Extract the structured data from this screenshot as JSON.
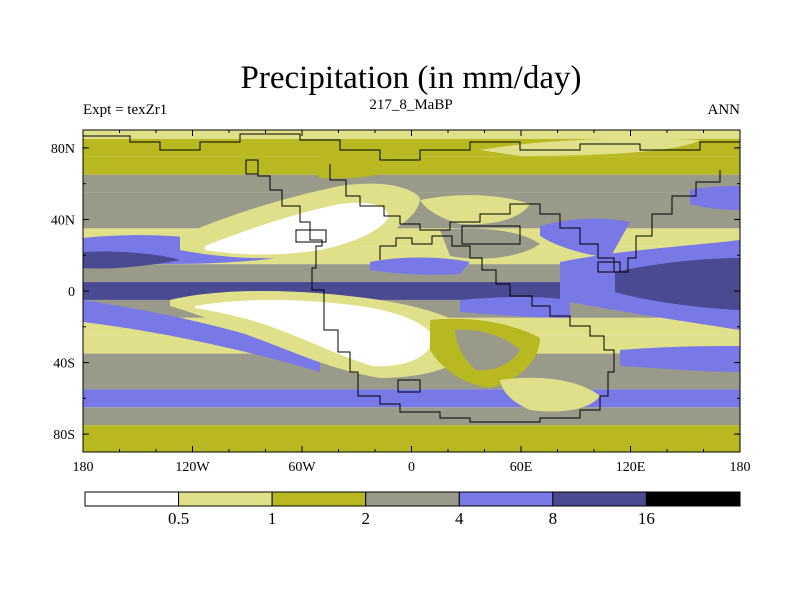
{
  "chart_data": {
    "type": "heatmap",
    "title": "Precipitation (in mm/day)",
    "subtitle_left": "Expt = texZr1",
    "subtitle_center": "217_8_MaBP",
    "subtitle_right": "ANN",
    "xlabel": "",
    "ylabel": "",
    "xlim": [
      -180,
      180
    ],
    "ylim": [
      -90,
      90
    ],
    "x_ticks": [
      {
        "value": -180,
        "label": "180"
      },
      {
        "value": -120,
        "label": "120W"
      },
      {
        "value": -60,
        "label": "60W"
      },
      {
        "value": 0,
        "label": "0"
      },
      {
        "value": 60,
        "label": "60E"
      },
      {
        "value": 120,
        "label": "120E"
      },
      {
        "value": 180,
        "label": "180"
      }
    ],
    "y_ticks": [
      {
        "value": 80,
        "label": "80N"
      },
      {
        "value": 40,
        "label": "40N"
      },
      {
        "value": 0,
        "label": "0"
      },
      {
        "value": -40,
        "label": "40S"
      },
      {
        "value": -80,
        "label": "80S"
      }
    ],
    "colorbar": {
      "levels": [
        0.5,
        1,
        2,
        4,
        8,
        16
      ],
      "labels": [
        "0.5",
        "1",
        "2",
        "4",
        "8",
        "16"
      ],
      "colors": [
        "#ffffff",
        "#e0e08a",
        "#b8b820",
        "#9a9a8a",
        "#7878e6",
        "#4a4a92",
        "#000000"
      ]
    },
    "zonal_mean_category_by_lat": [
      {
        "lat": 90,
        "cat": 1
      },
      {
        "lat": 80,
        "cat": 2
      },
      {
        "lat": 70,
        "cat": 2
      },
      {
        "lat": 60,
        "cat": 3
      },
      {
        "lat": 50,
        "cat": 3
      },
      {
        "lat": 40,
        "cat": 3
      },
      {
        "lat": 30,
        "cat": 1
      },
      {
        "lat": 20,
        "cat": 1
      },
      {
        "lat": 10,
        "cat": 3
      },
      {
        "lat": 0,
        "cat": 5
      },
      {
        "lat": -10,
        "cat": 3
      },
      {
        "lat": -20,
        "cat": 1
      },
      {
        "lat": -30,
        "cat": 1
      },
      {
        "lat": -40,
        "cat": 3
      },
      {
        "lat": -50,
        "cat": 3
      },
      {
        "lat": -60,
        "cat": 4
      },
      {
        "lat": -70,
        "cat": 3
      },
      {
        "lat": -80,
        "cat": 2
      },
      {
        "lat": -90,
        "cat": 2
      }
    ]
  }
}
